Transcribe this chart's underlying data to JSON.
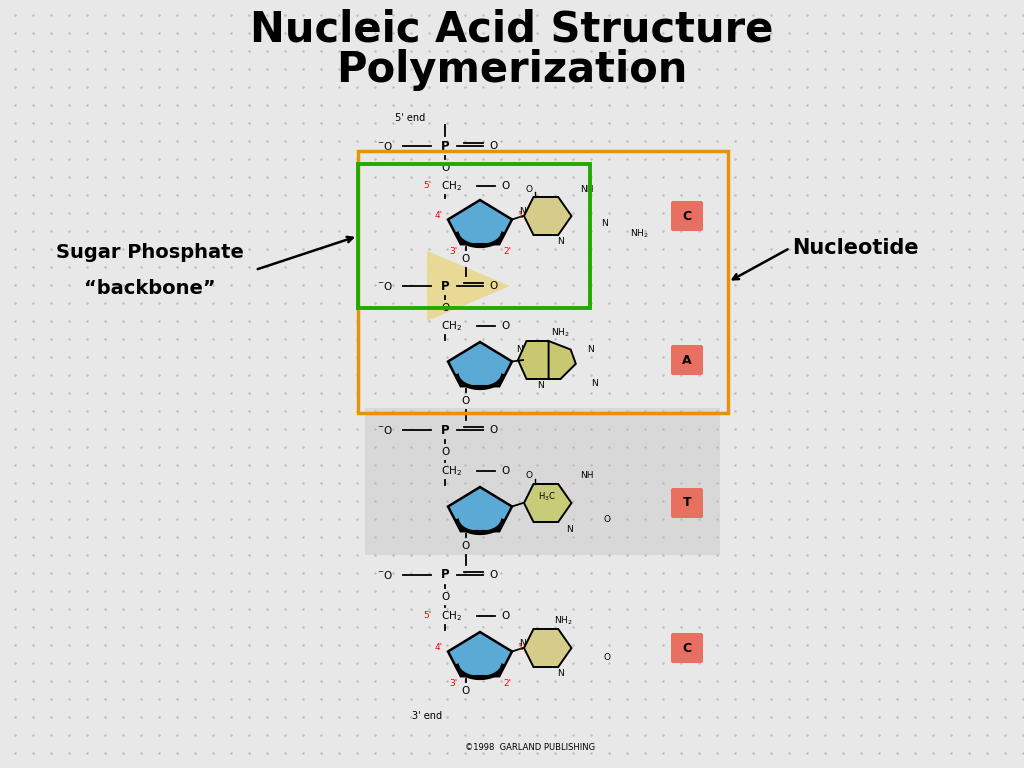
{
  "title_line1": "Nucleic Acid Structure",
  "title_line2": "Polymerization",
  "title_fontsize": 30,
  "bg_color": "#e8e8e8",
  "sugar_color": "#5baad6",
  "base_C_color": "#d4cc88",
  "base_A_color": "#c8c870",
  "base_T_color": "#c8cc78",
  "phosphate_highlight": "#e8d890",
  "green_box_color": "#22aa00",
  "orange_box_color": "#e8920a",
  "label_bg": "#e87060",
  "nucleotide_label": "Nucleotide",
  "backbone_label1": "Sugar Phosphate",
  "backbone_label2": "“backbone”",
  "copyright": "©1998  GARLAND PUBLISHING",
  "dot_color": "#cccccc"
}
